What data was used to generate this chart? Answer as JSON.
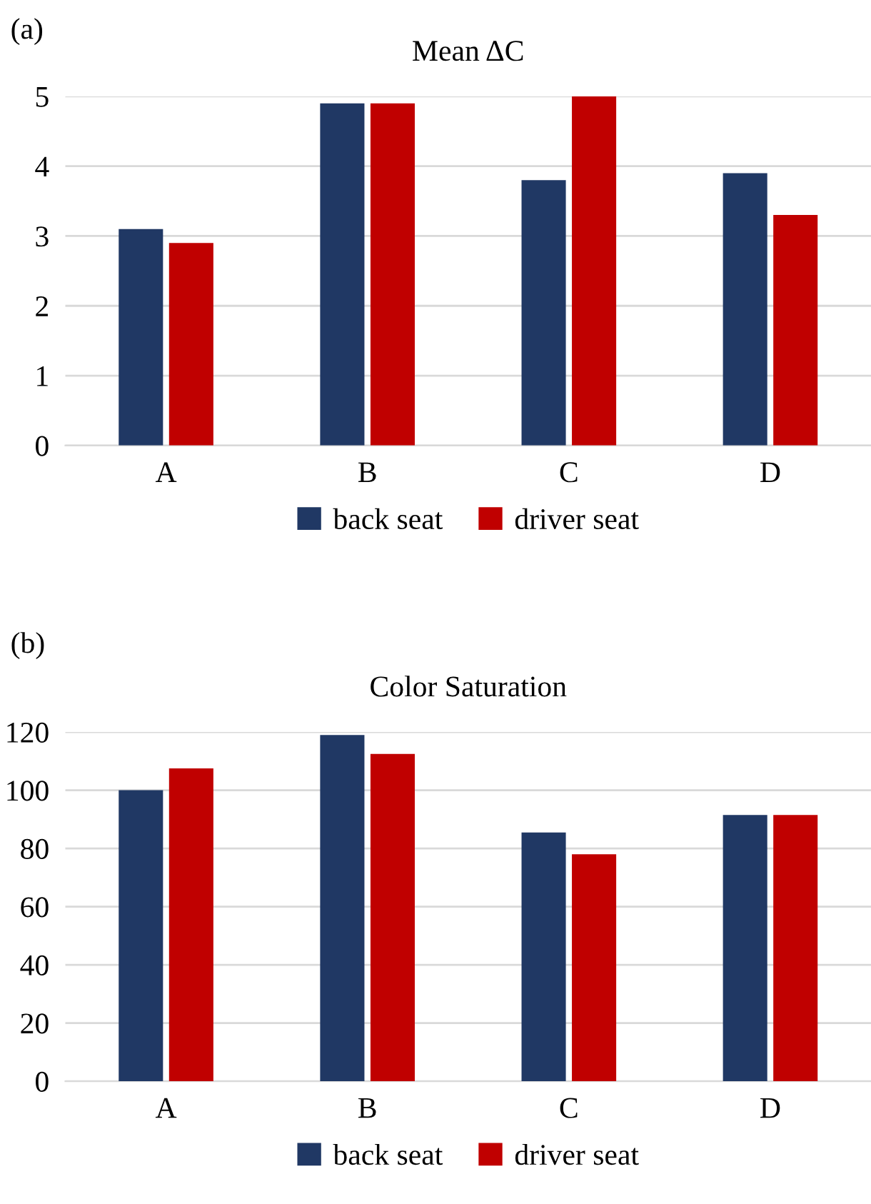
{
  "chart_data": [
    {
      "type": "bar",
      "title": "Mean ΔC",
      "annotations": [
        "(a)"
      ],
      "categories": [
        "A",
        "B",
        "C",
        "D"
      ],
      "series": [
        {
          "name": "back seat",
          "color": "#203864",
          "values": [
            3.1,
            4.9,
            3.8,
            3.9
          ]
        },
        {
          "name": "driver seat",
          "color": "#c00000",
          "values": [
            2.9,
            4.9,
            5.0,
            3.3
          ]
        }
      ],
      "ylim": [
        0,
        5
      ],
      "yticks": [
        0,
        1,
        2,
        3,
        4,
        5
      ],
      "grid": "y",
      "legend": "bottom"
    },
    {
      "type": "bar",
      "title": "Color Saturation",
      "annotations": [
        "(b)"
      ],
      "categories": [
        "A",
        "B",
        "C",
        "D"
      ],
      "series": [
        {
          "name": "back seat",
          "color": "#203864",
          "values": [
            100,
            119,
            85.5,
            91.5
          ]
        },
        {
          "name": "driver seat",
          "color": "#c00000",
          "values": [
            107.5,
            112.5,
            78,
            91.5
          ]
        }
      ],
      "ylim": [
        0,
        120
      ],
      "yticks": [
        0,
        20,
        40,
        60,
        80,
        100,
        120
      ],
      "grid": "y",
      "legend": "bottom"
    }
  ]
}
